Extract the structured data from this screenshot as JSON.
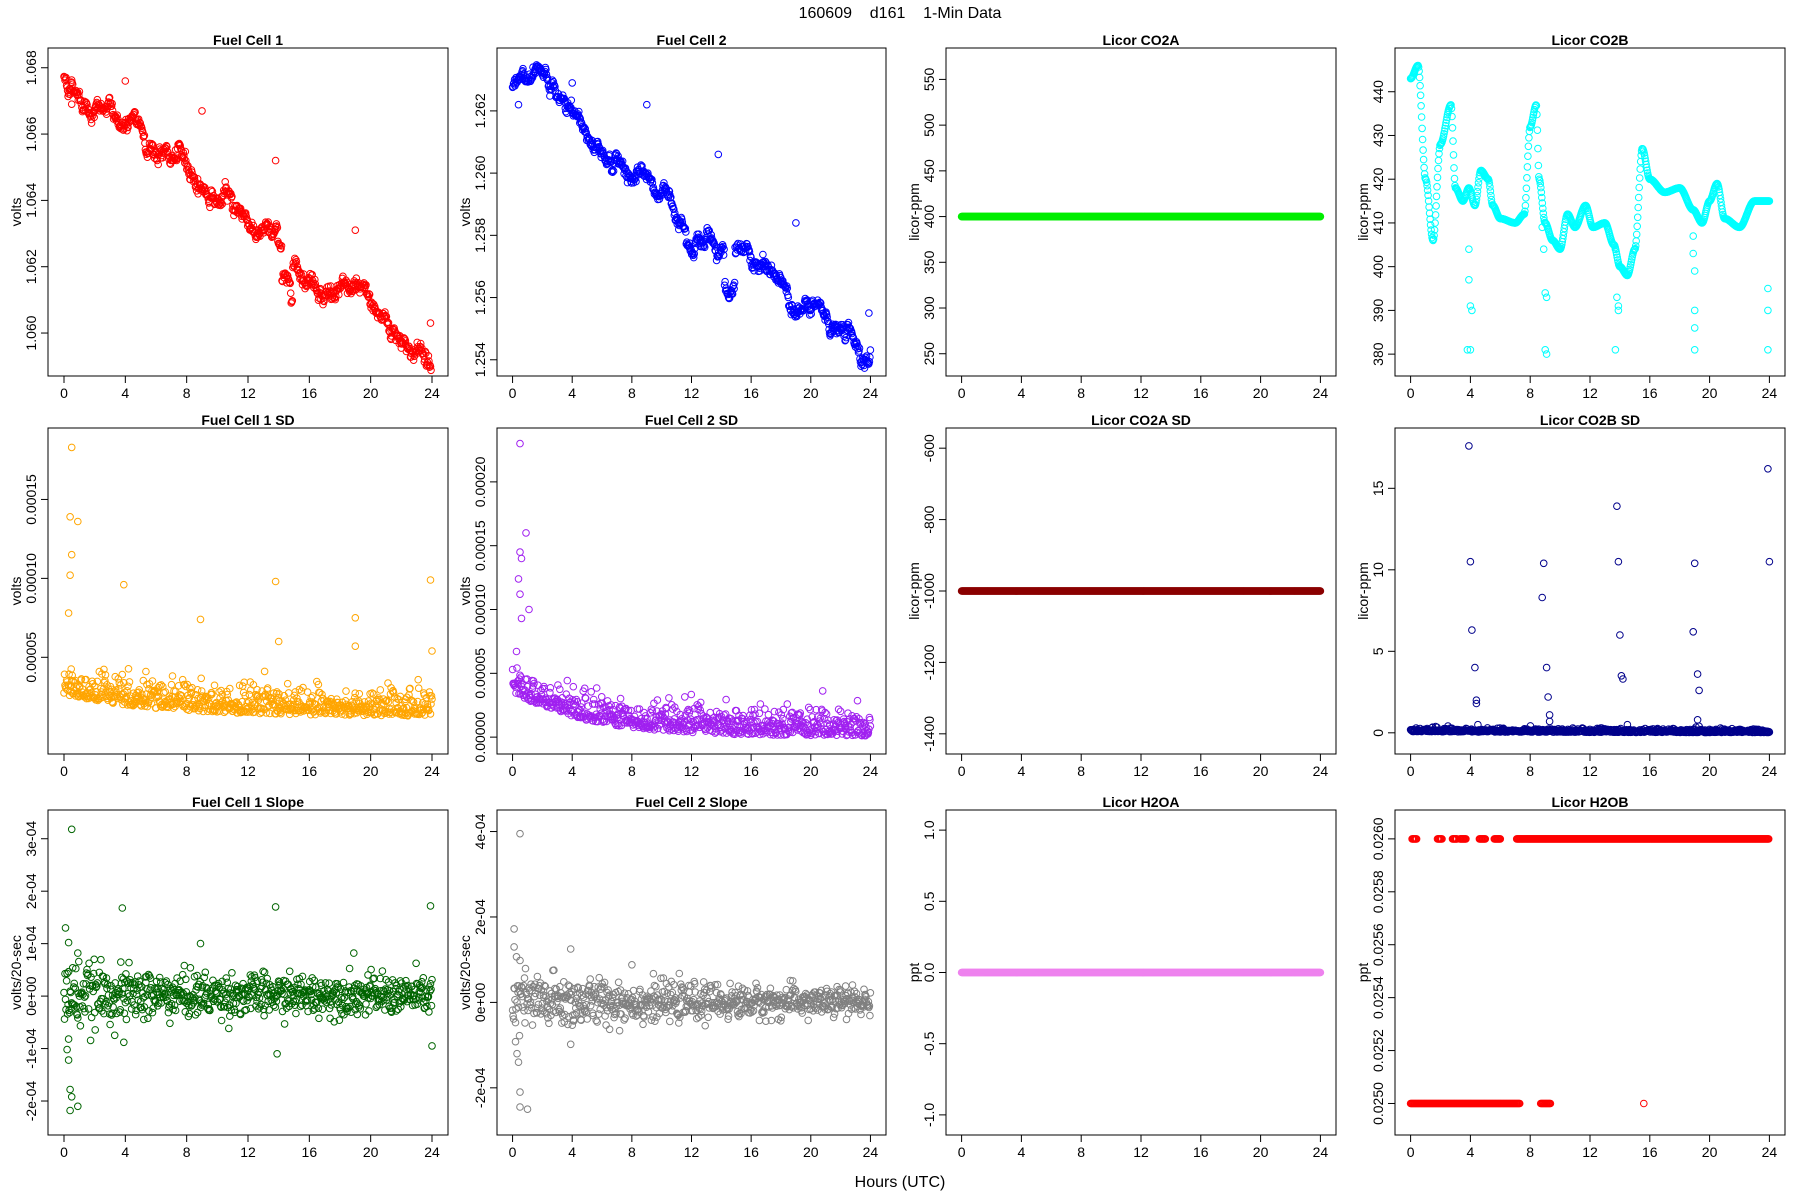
{
  "header": {
    "title": "160609    d161    1-Min Data"
  },
  "xaxis_label": "Hours (UTC)",
  "chart_data": [
    {
      "type": "scatter",
      "title": "Fuel Cell 1",
      "ylabel": "volts",
      "color": "#ff0000",
      "xlim": [
        0,
        24
      ],
      "ylim": [
        1.0591,
        1.0682
      ],
      "xticks": [
        0,
        4,
        8,
        12,
        16,
        20,
        24
      ],
      "yticks": [
        1.06,
        1.062,
        1.064,
        1.066,
        1.068
      ],
      "ytick_labels": [
        "1.060",
        "1.062",
        "1.064",
        "1.066",
        "1.068"
      ],
      "pattern": "trend",
      "start": 1.0677,
      "end": 1.0592,
      "noise": 0.00025,
      "spikes": [
        [
          0.4,
          1.0672
        ],
        [
          0.5,
          1.0669
        ],
        [
          4.0,
          1.0676
        ],
        [
          9.0,
          1.0667
        ],
        [
          13.8,
          1.0652
        ],
        [
          19.0,
          1.0631
        ],
        [
          23.9,
          1.0603
        ]
      ]
    },
    {
      "type": "scatter",
      "title": "Fuel Cell 2",
      "ylabel": "volts",
      "color": "#0000ff",
      "xlim": [
        0,
        24
      ],
      "ylim": [
        1.2539,
        1.2636
      ],
      "xticks": [
        0,
        4,
        8,
        12,
        16,
        20,
        24
      ],
      "yticks": [
        1.254,
        1.256,
        1.258,
        1.26,
        1.262
      ],
      "ytick_labels": [
        "1.254",
        "1.256",
        "1.258",
        "1.260",
        "1.262"
      ],
      "pattern": "trend",
      "start": 1.263,
      "end": 1.2541,
      "noise": 0.00025,
      "spikes": [
        [
          0.4,
          1.2622
        ],
        [
          4.0,
          1.2629
        ],
        [
          9.0,
          1.2622
        ],
        [
          13.8,
          1.2606
        ],
        [
          19.0,
          1.2584
        ],
        [
          23.9,
          1.2555
        ]
      ]
    },
    {
      "type": "scatter",
      "title": "Licor CO2A",
      "ylabel": "licor-ppm",
      "color": "#00ee00",
      "xlim": [
        0,
        24
      ],
      "ylim": [
        240,
        570
      ],
      "xticks": [
        0,
        4,
        8,
        12,
        16,
        20,
        24
      ],
      "yticks": [
        250,
        300,
        350,
        400,
        450,
        500,
        550
      ],
      "ytick_labels": [
        "250",
        "300",
        "350",
        "400",
        "450",
        "500",
        "550"
      ],
      "pattern": "const",
      "value": 400
    },
    {
      "type": "scatter",
      "title": "Licor CO2B",
      "ylabel": "licor-ppm",
      "color": "#00ffff",
      "xlim": [
        0,
        24
      ],
      "ylim": [
        378,
        447
      ],
      "xticks": [
        0,
        4,
        8,
        12,
        16,
        20,
        24
      ],
      "yticks": [
        380,
        390,
        400,
        410,
        420,
        430,
        440
      ],
      "ytick_labels": [
        "380",
        "390",
        "400",
        "410",
        "420",
        "430",
        "440"
      ],
      "pattern": "keyed",
      "keys": [
        [
          0,
          443
        ],
        [
          0.5,
          446
        ],
        [
          1.0,
          420
        ],
        [
          1.5,
          406
        ],
        [
          2.0,
          428
        ],
        [
          2.7,
          437
        ],
        [
          3.0,
          418
        ],
        [
          3.5,
          415
        ],
        [
          3.9,
          418
        ],
        [
          4.3,
          414
        ],
        [
          4.7,
          422
        ],
        [
          5.2,
          420
        ],
        [
          5.5,
          414
        ],
        [
          6.0,
          411
        ],
        [
          7.0,
          410
        ],
        [
          7.6,
          412
        ],
        [
          8.0,
          432
        ],
        [
          8.4,
          437
        ],
        [
          8.6,
          420
        ],
        [
          9.0,
          410
        ],
        [
          9.5,
          406
        ],
        [
          10.0,
          404
        ],
        [
          10.5,
          412
        ],
        [
          11.0,
          409
        ],
        [
          11.7,
          414
        ],
        [
          12.2,
          409
        ],
        [
          13.0,
          410
        ],
        [
          13.6,
          405
        ],
        [
          14.0,
          400
        ],
        [
          14.5,
          398
        ],
        [
          15.0,
          404
        ],
        [
          15.5,
          427
        ],
        [
          16.0,
          420
        ],
        [
          17.0,
          417
        ],
        [
          18.0,
          418
        ],
        [
          18.9,
          413
        ],
        [
          19.5,
          410
        ],
        [
          20.0,
          415
        ],
        [
          20.5,
          419
        ],
        [
          21.0,
          411
        ],
        [
          22.0,
          409
        ],
        [
          23.0,
          415
        ],
        [
          24.0,
          415
        ]
      ],
      "spikes": [
        [
          3.9,
          404
        ],
        [
          3.9,
          397
        ],
        [
          4.0,
          391
        ],
        [
          4.1,
          390
        ],
        [
          4.0,
          381
        ],
        [
          3.8,
          381
        ],
        [
          8.8,
          409
        ],
        [
          8.9,
          404
        ],
        [
          9.0,
          394
        ],
        [
          9.1,
          393
        ],
        [
          9.0,
          381
        ],
        [
          9.1,
          380
        ],
        [
          13.7,
          404
        ],
        [
          13.8,
          393
        ],
        [
          13.9,
          391
        ],
        [
          13.9,
          390
        ],
        [
          13.7,
          381
        ],
        [
          18.9,
          407
        ],
        [
          18.9,
          403
        ],
        [
          19.0,
          399
        ],
        [
          19.0,
          390
        ],
        [
          19.0,
          386
        ],
        [
          19.0,
          381
        ],
        [
          23.9,
          395
        ],
        [
          23.9,
          390
        ],
        [
          23.9,
          381
        ]
      ]
    },
    {
      "type": "scatter",
      "title": "Fuel Cell 1 SD",
      "ylabel": "volts",
      "color": "#ffa500",
      "xlim": [
        0,
        24
      ],
      "ylim": [
        -3e-06,
        0.000187
      ],
      "xticks": [
        0,
        4,
        8,
        12,
        16,
        20,
        24
      ],
      "yticks": [
        5e-05,
        0.0001,
        0.00015
      ],
      "ytick_labels": [
        "0.00005",
        "0.00010",
        "0.00015"
      ],
      "pattern": "decay",
      "high": 3.2e-05,
      "low": 1.8e-05,
      "tau": 6,
      "noise": 9e-06,
      "spikes": [
        [
          0.5,
          0.000183
        ],
        [
          0.4,
          0.000139
        ],
        [
          0.9,
          0.000136
        ],
        [
          0.5,
          0.000115
        ],
        [
          0.4,
          0.000102
        ],
        [
          3.9,
          9.6e-05
        ],
        [
          13.8,
          9.8e-05
        ],
        [
          23.9,
          9.9e-05
        ],
        [
          0.3,
          7.8e-05
        ],
        [
          8.9,
          7.4e-05
        ],
        [
          19.0,
          7.5e-05
        ],
        [
          14.0,
          6e-05
        ],
        [
          19.0,
          5.7e-05
        ],
        [
          24.0,
          5.4e-05
        ]
      ]
    },
    {
      "type": "scatter",
      "title": "Fuel Cell 2 SD",
      "ylabel": "volts",
      "color": "#a020f0",
      "xlim": [
        0,
        24
      ],
      "ylim": [
        -3e-06,
        0.000232
      ],
      "xticks": [
        0,
        4,
        8,
        12,
        16,
        20,
        24
      ],
      "yticks": [
        0,
        5e-05,
        0.0001,
        0.00015,
        0.0002
      ],
      "ytick_labels": [
        "0.00000",
        "0.00005",
        "0.00010",
        "0.00015",
        "0.00020"
      ],
      "pattern": "decay",
      "high": 4.2e-05,
      "low": 7e-06,
      "tau": 5,
      "noise": 1.1e-05,
      "spikes": [
        [
          0.5,
          0.00023
        ],
        [
          0.9,
          0.00016
        ],
        [
          0.5,
          0.000145
        ],
        [
          0.6,
          0.00014
        ],
        [
          0.4,
          0.000124
        ],
        [
          0.5,
          0.000112
        ],
        [
          1.1,
          0.0001
        ],
        [
          0.6,
          9.3e-05
        ]
      ]
    },
    {
      "type": "scatter",
      "title": "Licor CO2A SD",
      "ylabel": "licor-ppm",
      "color": "#8b0000",
      "xlim": [
        0,
        24
      ],
      "ylim": [
        -1420,
        -580
      ],
      "xticks": [
        0,
        4,
        8,
        12,
        16,
        20,
        24
      ],
      "yticks": [
        -1400,
        -1200,
        -1000,
        -800,
        -600
      ],
      "ytick_labels": [
        "-1400",
        "-1200",
        "-1000",
        "-800",
        "-600"
      ],
      "pattern": "const",
      "value": -1000
    },
    {
      "type": "scatter",
      "title": "Licor CO2B SD",
      "ylabel": "licor-ppm",
      "color": "#00008b",
      "xlim": [
        0,
        24
      ],
      "ylim": [
        -0.5,
        17.9
      ],
      "xticks": [
        0,
        4,
        8,
        12,
        16,
        20,
        24
      ],
      "yticks": [
        0,
        5,
        10,
        15
      ],
      "ytick_labels": [
        "0",
        "5",
        "10",
        "15"
      ],
      "pattern": "decay",
      "high": 0.15,
      "low": 0.08,
      "tau": 10,
      "noise": 0.12,
      "spikes": [
        [
          3.9,
          17.6
        ],
        [
          4.0,
          10.5
        ],
        [
          4.1,
          6.3
        ],
        [
          4.3,
          4.0
        ],
        [
          4.4,
          2.0
        ],
        [
          4.4,
          1.8
        ],
        [
          4.5,
          0.5
        ],
        [
          8.8,
          8.3
        ],
        [
          8.9,
          10.4
        ],
        [
          9.1,
          4.0
        ],
        [
          9.2,
          2.2
        ],
        [
          9.3,
          1.1
        ],
        [
          9.3,
          0.7
        ],
        [
          13.8,
          13.9
        ],
        [
          13.9,
          10.5
        ],
        [
          14.0,
          6.0
        ],
        [
          14.1,
          3.5
        ],
        [
          14.2,
          3.3
        ],
        [
          14.5,
          0.5
        ],
        [
          18.9,
          6.2
        ],
        [
          19.0,
          10.4
        ],
        [
          19.2,
          3.6
        ],
        [
          19.3,
          2.6
        ],
        [
          19.2,
          0.8
        ],
        [
          19.3,
          0.4
        ],
        [
          23.9,
          16.2
        ],
        [
          24.0,
          10.5
        ]
      ]
    },
    {
      "type": "scatter",
      "title": "Fuel Cell 1 Slope",
      "ylabel": "volts/20-sec",
      "color": "#006400",
      "xlim": [
        0,
        24
      ],
      "ylim": [
        -0.00024,
        0.00033
      ],
      "xticks": [
        0,
        4,
        8,
        12,
        16,
        20,
        24
      ],
      "yticks": [
        -0.0002,
        -0.0001,
        0,
        0.0001,
        0.0002,
        0.0003
      ],
      "ytick_labels": [
        "-2e-04",
        "-1e-04",
        "0e+00",
        "1e-04",
        "2e-04",
        "3e-04"
      ],
      "pattern": "noise",
      "center": 2e-06,
      "noise0": 3.2e-05,
      "noise1": 1.8e-05,
      "spikes": [
        [
          0.5,
          0.000318
        ],
        [
          0.1,
          0.00013
        ],
        [
          0.3,
          0.000102
        ],
        [
          0.9,
          8.2e-05
        ],
        [
          0.3,
          -8.2e-05
        ],
        [
          0.2,
          -0.000102
        ],
        [
          0.3,
          -0.000122
        ],
        [
          0.4,
          -0.000178
        ],
        [
          0.5,
          -0.000192
        ],
        [
          0.4,
          -0.000218
        ],
        [
          0.9,
          -0.00021
        ],
        [
          3.8,
          0.000168
        ],
        [
          3.9,
          -8.8e-05
        ],
        [
          8.9,
          0.0001
        ],
        [
          13.8,
          0.00017
        ],
        [
          13.9,
          -0.00011
        ],
        [
          18.9,
          8.2e-05
        ],
        [
          23.9,
          0.000172
        ],
        [
          24.0,
          -9.5e-05
        ]
      ]
    },
    {
      "type": "scatter",
      "title": "Fuel Cell 2 Slope",
      "ylabel": "volts/20-sec",
      "color": "#808080",
      "xlim": [
        0,
        24
      ],
      "ylim": [
        -0.00028,
        0.00042
      ],
      "xticks": [
        0,
        4,
        8,
        12,
        16,
        20,
        24
      ],
      "yticks": [
        -0.0002,
        0,
        0.0002,
        0.0004
      ],
      "ytick_labels": [
        "-2e-04",
        "0e+00",
        "2e-04",
        "4e-04"
      ],
      "pattern": "noise",
      "center": 1e-06,
      "noise0": 4.2e-05,
      "noise1": 1.7e-05,
      "spikes": [
        [
          0.5,
          0.000395
        ],
        [
          0.1,
          0.000172
        ],
        [
          0.1,
          0.00013
        ],
        [
          0.5,
          9.8e-05
        ],
        [
          0.2,
          -9.2e-05
        ],
        [
          0.3,
          -0.00012
        ],
        [
          0.4,
          -0.00014
        ],
        [
          0.5,
          -0.00021
        ],
        [
          0.5,
          -0.000245
        ],
        [
          1.0,
          -0.00025
        ],
        [
          3.9,
          0.000125
        ],
        [
          3.9,
          -9.8e-05
        ],
        [
          8.0,
          8.8e-05
        ]
      ]
    },
    {
      "type": "scatter",
      "title": "Licor H2OA",
      "ylabel": "ppt",
      "color": "#ee82ee",
      "xlim": [
        0,
        24
      ],
      "ylim": [
        -1.05,
        1.05
      ],
      "xticks": [
        0,
        4,
        8,
        12,
        16,
        20,
        24
      ],
      "yticks": [
        -1.0,
        -0.5,
        0,
        0.5,
        1.0
      ],
      "ytick_labels": [
        "-1.0",
        "-0.5",
        "0.0",
        "0.5",
        "1.0"
      ],
      "pattern": "const",
      "value": 0
    },
    {
      "type": "scatter",
      "title": "Licor H2OB",
      "ylabel": "ppt",
      "color": "#ff0000",
      "xlim": [
        0,
        24
      ],
      "ylim": [
        0.02493,
        0.02606
      ],
      "xticks": [
        0,
        4,
        8,
        12,
        16,
        20,
        24
      ],
      "yticks": [
        0.025,
        0.0252,
        0.0254,
        0.0256,
        0.0258,
        0.026
      ],
      "ytick_labels": [
        "0.0250",
        "0.0252",
        "0.0254",
        "0.0256",
        "0.0258",
        "0.0260"
      ],
      "pattern": "twolevel",
      "lowv": 0.025,
      "highv": 0.026,
      "high_ranges": [
        [
          0.1,
          0.4
        ],
        [
          1.8,
          2.1
        ],
        [
          2.8,
          3.1
        ],
        [
          3.3,
          3.7
        ],
        [
          4.6,
          5.0
        ],
        [
          5.6,
          6.0
        ],
        [
          7.1,
          24.0
        ]
      ],
      "low_ranges": [
        [
          0.0,
          7.3
        ],
        [
          8.7,
          9.4
        ]
      ],
      "spikes": [
        [
          15.6,
          0.025
        ]
      ]
    }
  ]
}
